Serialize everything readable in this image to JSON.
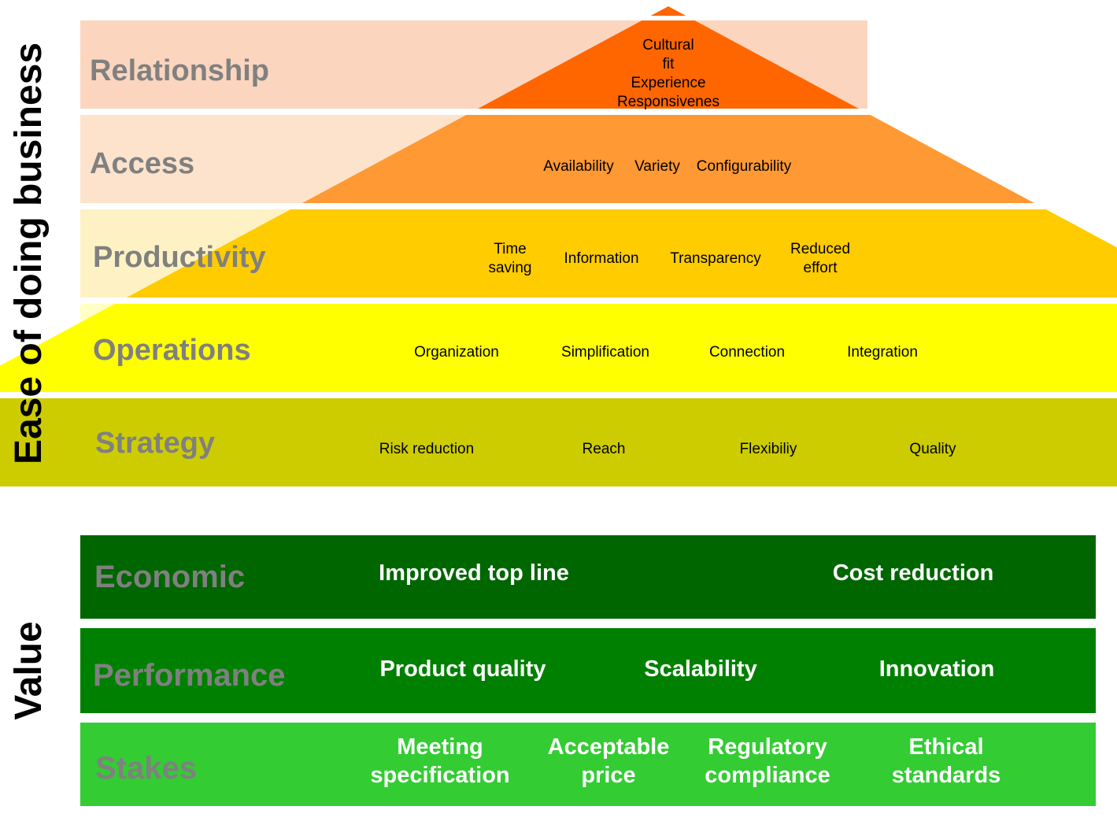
{
  "axis_titles": {
    "pyramid": "Ease of doing business",
    "value": "Value"
  },
  "colors": {
    "relationship_band": "#FCD5BE",
    "access_band": "#FDE3CC",
    "productivity_band": "#FEF2C4",
    "operations_band": "#FFFFC6",
    "strategy_band": "#F2F2C4",
    "relationship_tier": "#FF6600",
    "access_tier": "#FF9933",
    "productivity_tier": "#FFCC00",
    "operations_tier": "#FFFF00",
    "strategy_tier": "#CCCC00",
    "economic": "#006600",
    "performance": "#008000",
    "stakes": "#33CC33",
    "label_grey": "#808080"
  },
  "pyramid": {
    "tiers": [
      {
        "label": "Relationship",
        "items": [
          [
            "Cultural",
            "fit",
            "Experience",
            "Responsivenes"
          ]
        ]
      },
      {
        "label": "Access",
        "items": [
          [
            "Availability"
          ],
          [
            "Variety"
          ],
          [
            "Configurability"
          ]
        ]
      },
      {
        "label": "Productivity",
        "items": [
          [
            "Time",
            "saving"
          ],
          [
            "Information"
          ],
          [
            "Transparency"
          ],
          [
            "Reduced",
            "effort"
          ]
        ]
      },
      {
        "label": "Operations",
        "items": [
          [
            "Organization"
          ],
          [
            "Simplification"
          ],
          [
            "Connection"
          ],
          [
            "Integration"
          ]
        ]
      },
      {
        "label": "Strategy",
        "items": [
          [
            "Risk reduction"
          ],
          [
            "Reach"
          ],
          [
            "Flexibiliy"
          ],
          [
            "Quality"
          ]
        ]
      }
    ]
  },
  "value": {
    "rows": [
      {
        "label": "Economic",
        "items": [
          [
            "Improved top line"
          ],
          [
            "Cost reduction"
          ]
        ]
      },
      {
        "label": "Performance",
        "items": [
          [
            "Product quality"
          ],
          [
            "Scalability"
          ],
          [
            "Innovation"
          ]
        ]
      },
      {
        "label": "Stakes",
        "items": [
          [
            "Meeting",
            "specification"
          ],
          [
            "Acceptable",
            "price"
          ],
          [
            "Regulatory",
            "compliance"
          ],
          [
            "Ethical",
            "standards"
          ]
        ]
      }
    ]
  }
}
